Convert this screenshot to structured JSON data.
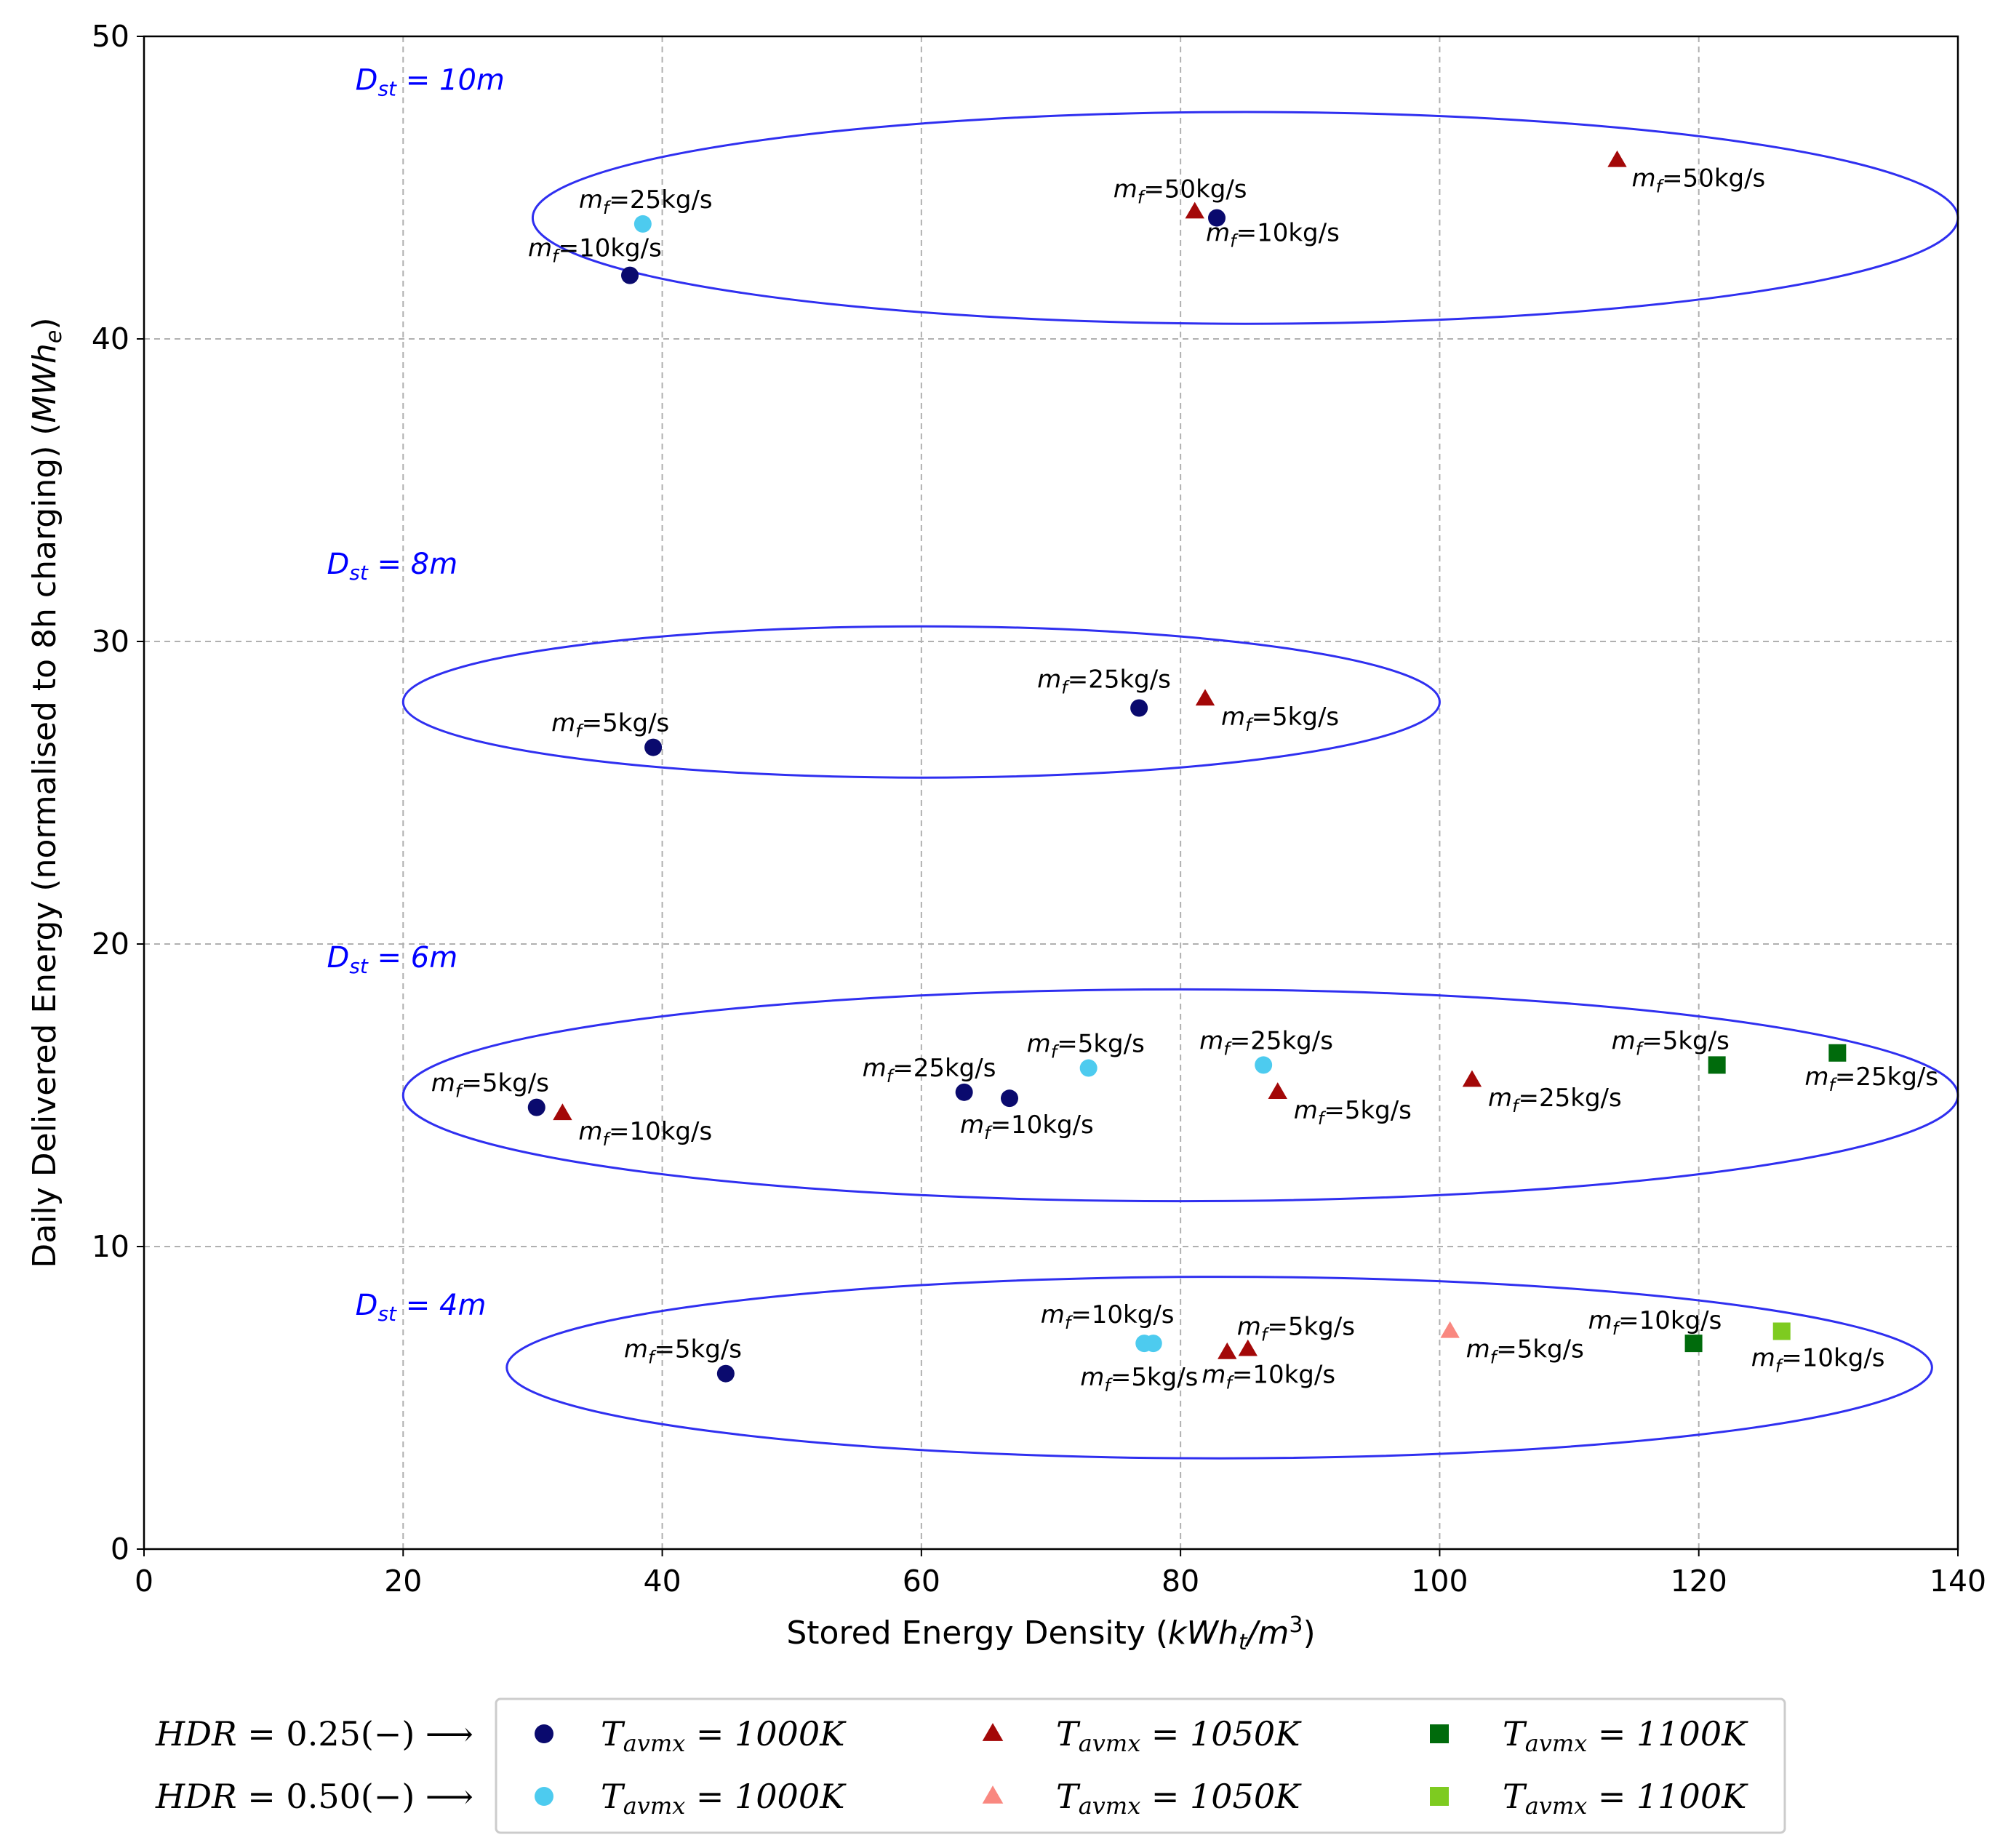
{
  "chart_data": {
    "type": "scatter",
    "xlabel": "Stored Energy Density (kWh_t/m^3)",
    "ylabel": "Daily Delivered Energy (normalised to 8h charging) (MWh_e)",
    "xlim": [
      0,
      140
    ],
    "ylim": [
      0,
      50
    ],
    "xticks": [
      "0",
      "20",
      "40",
      "60",
      "80",
      "100",
      "120",
      "140"
    ],
    "yticks": [
      "0",
      "10",
      "20",
      "30",
      "40",
      "50"
    ],
    "grid": true,
    "series": [
      {
        "name": "T_avmx = 1000K, HDR = 0.25(−)",
        "marker": "circle",
        "color": "#0a0a6e",
        "points": [
          {
            "x": 37.5,
            "y": 42.1,
            "label": "m_f=10kg/s"
          },
          {
            "x": 82.8,
            "y": 44.0,
            "label": "m_f=10kg/s"
          },
          {
            "x": 39.3,
            "y": 26.5,
            "label": "m_f=5kg/s"
          },
          {
            "x": 76.8,
            "y": 27.8,
            "label": "m_f=25kg/s"
          },
          {
            "x": 30.3,
            "y": 14.6,
            "label": "m_f=5kg/s"
          },
          {
            "x": 63.3,
            "y": 15.1,
            "label": "m_f=25kg/s"
          },
          {
            "x": 66.8,
            "y": 14.9,
            "label": "m_f=10kg/s"
          },
          {
            "x": 44.9,
            "y": 5.8,
            "label": "m_f=5kg/s"
          }
        ]
      },
      {
        "name": "T_avmx = 1000K, HDR = 0.50(−)",
        "marker": "circle",
        "color": "#4dcbef",
        "points": [
          {
            "x": 38.5,
            "y": 43.8,
            "label": "m_f=25kg/s"
          },
          {
            "x": 72.9,
            "y": 15.9,
            "label": "m_f=5kg/s"
          },
          {
            "x": 86.4,
            "y": 16.0,
            "label": "m_f=25kg/s"
          },
          {
            "x": 77.2,
            "y": 6.8,
            "label": "m_f=5kg/s"
          },
          {
            "x": 77.9,
            "y": 6.8,
            "label": "m_f=10kg/s"
          }
        ]
      },
      {
        "name": "T_avmx = 1050K, HDR = 0.25(−)",
        "marker": "triangle",
        "color": "#a30808",
        "points": [
          {
            "x": 81.1,
            "y": 44.2,
            "label": "m_f=50kg/s"
          },
          {
            "x": 113.7,
            "y": 45.9,
            "label": "m_f=50kg/s"
          },
          {
            "x": 81.9,
            "y": 28.1,
            "label": "m_f=5kg/s"
          },
          {
            "x": 32.3,
            "y": 14.4,
            "label": "m_f=10kg/s"
          },
          {
            "x": 87.5,
            "y": 15.1,
            "label": "m_f=5kg/s"
          },
          {
            "x": 102.5,
            "y": 15.5,
            "label": "m_f=25kg/s"
          },
          {
            "x": 83.6,
            "y": 6.5,
            "label": "m_f=10kg/s"
          },
          {
            "x": 85.2,
            "y": 6.6,
            "label": "m_f=5kg/s"
          }
        ]
      },
      {
        "name": "T_avmx = 1050K, HDR = 0.50(−)",
        "marker": "triangle",
        "color": "#f98880",
        "points": [
          {
            "x": 100.8,
            "y": 7.2,
            "label": "m_f=5kg/s"
          }
        ]
      },
      {
        "name": "T_avmx = 1100K, HDR = 0.25(−)",
        "marker": "square",
        "color": "#006b0c",
        "points": [
          {
            "x": 121.4,
            "y": 16.0,
            "label": "m_f=5kg/s"
          },
          {
            "x": 130.7,
            "y": 16.4,
            "label": "m_f=25kg/s"
          },
          {
            "x": 119.6,
            "y": 6.8,
            "label": "m_f=10kg/s"
          }
        ]
      },
      {
        "name": "T_avmx = 1100K, HDR = 0.50(−)",
        "marker": "square",
        "color": "#7ecb20",
        "points": [
          {
            "x": 126.4,
            "y": 7.2,
            "label": "m_f=10kg/s"
          }
        ]
      }
    ],
    "groups": [
      {
        "label": "D_st = 10m",
        "cx": 85,
        "cy": 44.0,
        "rx": 55,
        "ry": 3.5
      },
      {
        "label": "D_st = 8m",
        "cx": 60,
        "cy": 28.0,
        "rx": 40,
        "ry": 2.5
      },
      {
        "label": "D_st = 6m",
        "cx": 80,
        "cy": 15.0,
        "rx": 60,
        "ry": 3.5
      },
      {
        "label": "D_st = 4m",
        "cx": 83,
        "cy": 6.0,
        "rx": 55,
        "ry": 3.0
      }
    ],
    "legend": {
      "placement": "bottom",
      "row_labels": [
        "HDR = 0.25(−) ⟶",
        "HDR = 0.50(−) ⟶"
      ],
      "entries": [
        {
          "label": "T_avmx = 1000K",
          "series": 0
        },
        {
          "label": "T_avmx = 1050K",
          "series": 2
        },
        {
          "label": "T_avmx = 1100K",
          "series": 4
        },
        {
          "label": "T_avmx = 1000K",
          "series": 1
        },
        {
          "label": "T_avmx = 1050K",
          "series": 3
        },
        {
          "label": "T_avmx = 1100K",
          "series": 5
        }
      ]
    }
  }
}
